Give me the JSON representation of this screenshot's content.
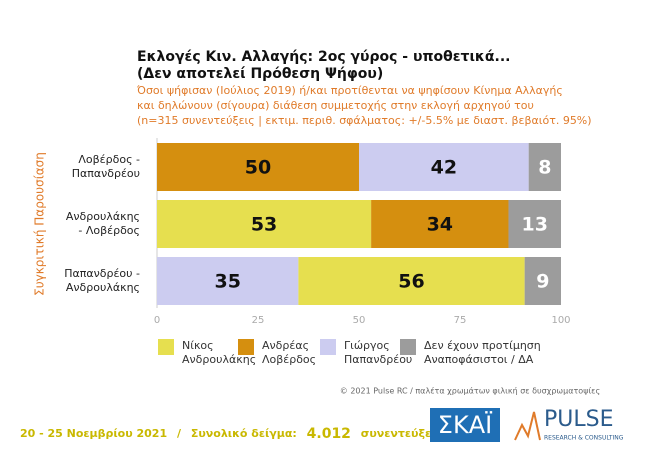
{
  "chart_data": {
    "type": "stacked-bar-horizontal",
    "title": "Εκλογές Κιν. Αλλαγής: 2ος γύρος - υποθετικά...",
    "title_line2": "(Δεν αποτελεί Πρόθεση Ψήφου)",
    "subtitle": [
      "Όσοι ψήφισαν (Ιούλιος 2019) ή/και προτίθενται να ψηφίσουν Κίνημα Αλλαγής",
      "και δηλώνουν (σίγουρα) διάθεση συμμετοχής στην εκλογή αρχηγού του",
      "(n=315 συνεντεύξεις | εκτιμ. περιθ. σφάλματος: +/-5.5% με διαστ. βεβαιότ. 95%)"
    ],
    "ylabel": "Συγκριτική Παρουσίαση",
    "categories": [
      "Λοβέρδος -\nΠαπανδρέου",
      "Ανδρουλάκης\n- Λοβέρδος",
      "Παπανδρέου -\nΑνδρουλάκης"
    ],
    "series": [
      {
        "name": "Νίκος\nΑνδρουλάκης",
        "color": "#e6df4f",
        "values": [
          null,
          53,
          56
        ]
      },
      {
        "name": "Ανδρέας\nΛοβέρδος",
        "color": "#d58f0f",
        "values": [
          50,
          34,
          null
        ]
      },
      {
        "name": "Γιώργος\nΠαπανδρέου",
        "color": "#ccccf0",
        "values": [
          42,
          null,
          35
        ]
      },
      {
        "name": "Δεν έχουν προτίμηση\nΑναποφάσιστοι / ΔΑ",
        "color": "#9c9c9c",
        "values": [
          8,
          13,
          9
        ]
      }
    ],
    "stack_order": [
      [
        "Ανδρέας\nΛοβέρδος",
        "Γιώργος\nΠαπανδρέου",
        "Δεν έχουν προτίμηση\nΑναποφάσιστοι / ΔΑ"
      ],
      [
        "Νίκος\nΑνδρουλάκης",
        "Ανδρέας\nΛοβέρδος",
        "Δεν έχουν προτίμηση\nΑναποφάσιστοι / ΔΑ"
      ],
      [
        "Γιώργος\nΠαπανδρέου",
        "Νίκος\nΑνδρουλάκης",
        "Δεν έχουν προτίμηση\nΑναποφάσιστοι / ΔΑ"
      ]
    ],
    "xlim": [
      0,
      100
    ],
    "xticks": [
      0,
      25,
      50,
      75,
      100
    ],
    "grid": false,
    "credit": "© 2021 Pulse RC  /  παλέτα χρωμάτων φιλική σε δυσχρωματοψίες",
    "footer": {
      "dates": "20 - 25 Νοεμβρίου 2021",
      "separator": "/",
      "sample_label": "Συνολικό δείγμα:",
      "sample_value": "4.012",
      "sample_unit": "συνεντεύξεις"
    },
    "logos": {
      "broadcaster": "ΣΚΑΪ",
      "pollster": "PULSE",
      "pollster_tagline": "RESEARCH & CONSULTING"
    }
  }
}
